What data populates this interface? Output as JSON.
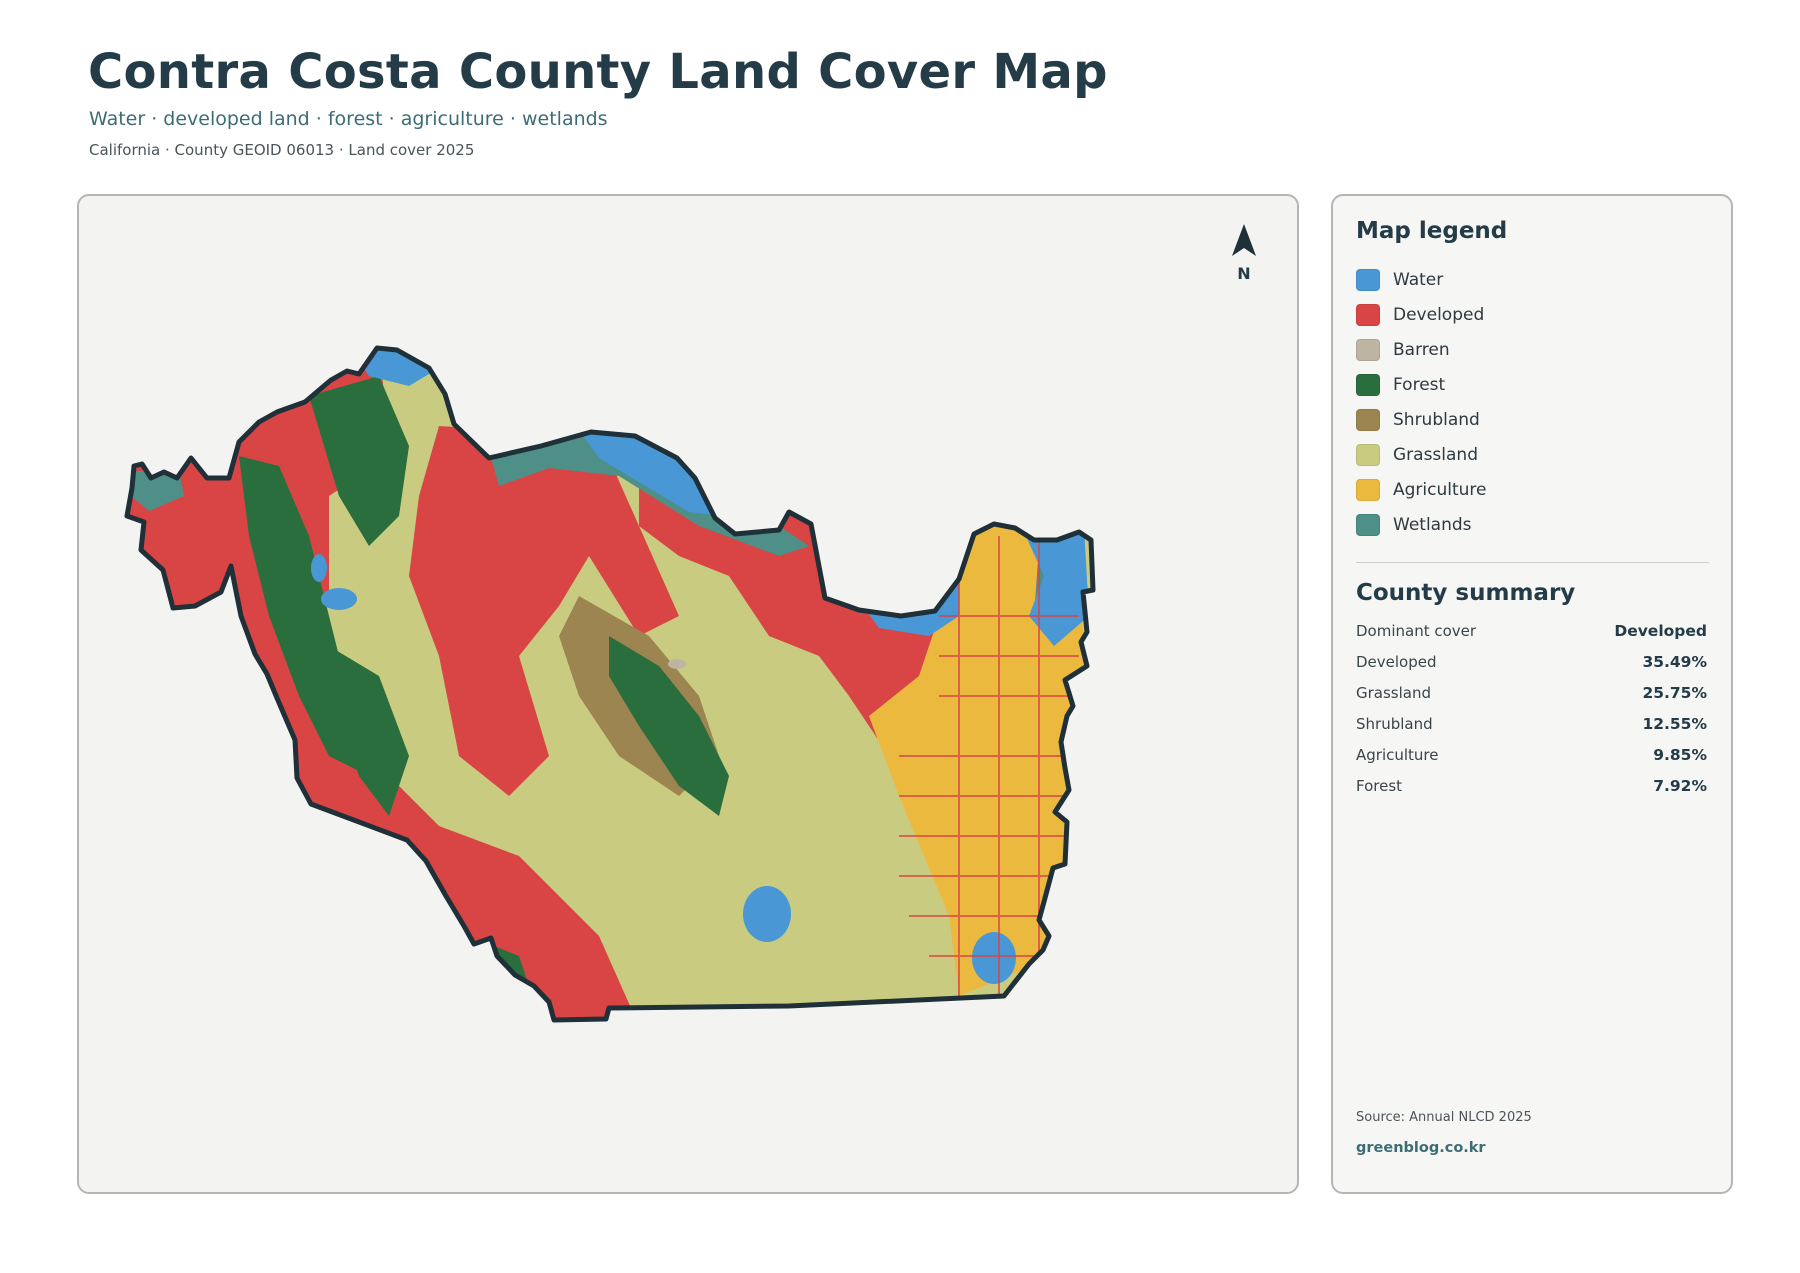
{
  "header": {
    "title": "Contra Costa County Land Cover Map",
    "subtitle": "Water · developed land · forest · agriculture · wetlands",
    "meta": "California · County GEOID 06013 · Land cover 2025"
  },
  "map": {
    "north_label": "N",
    "colors": {
      "background": "#f3f3f2",
      "outline": "#1f3038",
      "water": "#4a97d6",
      "developed": "#d94545",
      "barren": "#bdb4a1",
      "forest": "#2a6e3e",
      "shrubland": "#9c8551",
      "grassland": "#c9cc80",
      "agriculture": "#ecb93f",
      "wetlands": "#4e8f88"
    }
  },
  "legend": {
    "title": "Map legend",
    "items": [
      {
        "label": "Water",
        "color": "#4a97d6"
      },
      {
        "label": "Developed",
        "color": "#d94545"
      },
      {
        "label": "Barren",
        "color": "#bdb4a1"
      },
      {
        "label": "Forest",
        "color": "#2a6e3e"
      },
      {
        "label": "Shrubland",
        "color": "#9c8551"
      },
      {
        "label": "Grassland",
        "color": "#c9cc80"
      },
      {
        "label": "Agriculture",
        "color": "#ecb93f"
      },
      {
        "label": "Wetlands",
        "color": "#4e8f88"
      }
    ]
  },
  "summary": {
    "title": "County summary",
    "rows": [
      {
        "label": "Dominant cover",
        "value": "Developed"
      },
      {
        "label": "Developed",
        "value": "35.49%"
      },
      {
        "label": "Grassland",
        "value": "25.75%"
      },
      {
        "label": "Shrubland",
        "value": "12.55%"
      },
      {
        "label": "Agriculture",
        "value": "9.85%"
      },
      {
        "label": "Forest",
        "value": "7.92%"
      }
    ]
  },
  "footer": {
    "source": "Source: Annual NLCD 2025",
    "site": "greenblog.co.kr"
  }
}
